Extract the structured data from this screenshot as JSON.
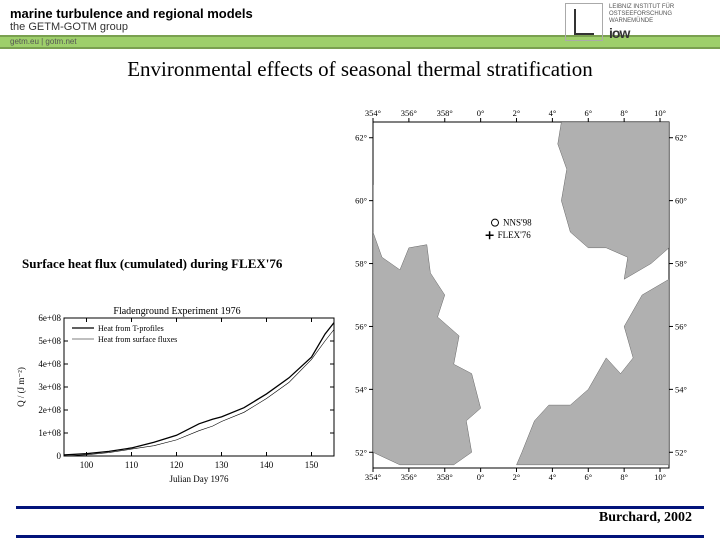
{
  "header": {
    "title": "marine turbulence and regional models",
    "subtitle": "the GETM-GOTM group",
    "links": "getm.eu  |  gotm.net"
  },
  "logo": {
    "inst1": "LEIBNIZ INSTITUT FÜR",
    "inst2": "OSTSEEFORSCHUNG",
    "inst3": "WARNEMÜNDE",
    "iow": "iow"
  },
  "main": {
    "title": "Environmental effects of seasonal thermal stratification",
    "left_caption": "Surface heat flux (cumulated) during FLEX'76",
    "citation": "Burchard, 2002"
  },
  "line_chart": {
    "title": "Fladenground Experiment 1976",
    "legend": [
      "Heat from T-profiles",
      "Heat from surface fluxes"
    ],
    "xlabel": "Julian Day 1976",
    "ylabel": "Q / (J m⁻²)",
    "xlim": [
      95,
      155
    ],
    "ylim": [
      0,
      600000000.0
    ],
    "xticks": [
      100,
      110,
      120,
      130,
      140,
      150
    ],
    "yticks": [
      "0",
      "1e+08",
      "2e+08",
      "3e+08",
      "4e+08",
      "5e+08",
      "6e+08"
    ],
    "series1": {
      "color": "#000000",
      "width": 1.3,
      "x": [
        95,
        100,
        105,
        110,
        115,
        120,
        125,
        128,
        130,
        135,
        140,
        145,
        150,
        153,
        155
      ],
      "y": [
        5000000.0,
        10000000.0,
        20000000.0,
        35000000.0,
        60000000.0,
        90000000.0,
        140000000.0,
        160000000.0,
        170000000.0,
        210000000.0,
        270000000.0,
        340000000.0,
        430000000.0,
        530000000.0,
        580000000.0
      ]
    },
    "series2": {
      "color": "#000000",
      "width": 0.6,
      "x": [
        95,
        100,
        105,
        110,
        115,
        120,
        125,
        128,
        130,
        135,
        140,
        145,
        150,
        153,
        155
      ],
      "y": [
        0.0,
        5000000.0,
        15000000.0,
        30000000.0,
        45000000.0,
        70000000.0,
        110000000.0,
        130000000.0,
        150000000.0,
        190000000.0,
        250000000.0,
        320000000.0,
        420000000.0,
        500000000.0,
        550000000.0
      ]
    },
    "background": "#ffffff",
    "axis_color": "#000000"
  },
  "map": {
    "xlim": [
      354,
      370.5
    ],
    "ylim": [
      51.5,
      62.5
    ],
    "xticks_top": [
      "354°",
      "356°",
      "358°",
      "0°",
      "2°",
      "4°",
      "6°",
      "8°",
      "10°"
    ],
    "xtick_vals": [
      354,
      356,
      358,
      360,
      362,
      364,
      366,
      368,
      370
    ],
    "yticks": [
      "52°",
      "54°",
      "56°",
      "58°",
      "60°",
      "62°"
    ],
    "ytick_vals": [
      52,
      54,
      56,
      58,
      60,
      62
    ],
    "land_color": "#b0b0b0",
    "sea_color": "#ffffff",
    "border_color": "#000000",
    "markers": [
      {
        "label": "NNS'98",
        "x": 360.8,
        "y": 59.3,
        "sym": "circle"
      },
      {
        "label": "FLEX'76",
        "x": 360.5,
        "y": 58.9,
        "sym": "plus"
      }
    ],
    "marker_fontsize": 9
  }
}
